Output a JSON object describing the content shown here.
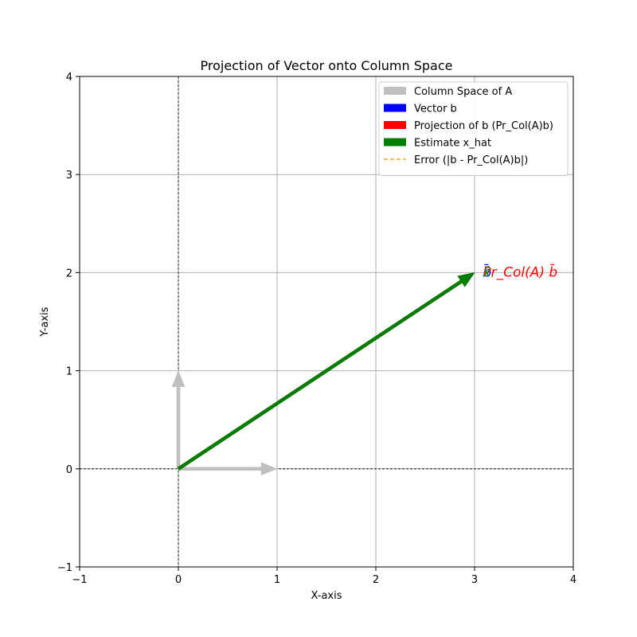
{
  "chart_data": {
    "type": "vector",
    "title": "Projection of Vector onto Column Space",
    "xlabel": "X-axis",
    "ylabel": "Y-axis",
    "xlim": [
      -1,
      4
    ],
    "ylim": [
      -1,
      4
    ],
    "xticks": [
      -1,
      0,
      1,
      2,
      3,
      4
    ],
    "yticks": [
      -1,
      0,
      1,
      2,
      3,
      4
    ],
    "grid": true,
    "legend_position": "top-right",
    "column_space_vectors": [
      {
        "x": 1,
        "y": 0
      },
      {
        "x": 0,
        "y": 1
      }
    ],
    "vectors": [
      {
        "name": "Vector b",
        "x": 3,
        "y": 2,
        "color": "#0000ff"
      },
      {
        "name": "Projection of b (Pr_Col(A)b)",
        "x": 3,
        "y": 2,
        "color": "#ff0000"
      },
      {
        "name": "Estimate x_hat",
        "x": 3,
        "y": 2,
        "color": "#008000"
      }
    ],
    "legend": [
      {
        "label": "Column Space of A",
        "color": "#bfbfbf",
        "style": "patch"
      },
      {
        "label": "Vector b",
        "color": "#0000ff",
        "style": "patch"
      },
      {
        "label": "Projection of b (Pr_Col(A)b)",
        "color": "#ff0000",
        "style": "patch"
      },
      {
        "label": "Estimate x_hat",
        "color": "#008000",
        "style": "patch"
      },
      {
        "label": "Error (|b - Pr_Col(A)b|)",
        "color": "#ffa500",
        "style": "dashed"
      }
    ],
    "annotations": [
      {
        "text": "b̄",
        "x": 3.1,
        "y": 2,
        "color": "#0000ff"
      },
      {
        "text": "Pr_Col(A) b̄",
        "x": 3.1,
        "y": 2,
        "color": "#ff0000"
      },
      {
        "text": "x̂",
        "x": 3.1,
        "y": 2,
        "color": "#008000"
      }
    ]
  }
}
